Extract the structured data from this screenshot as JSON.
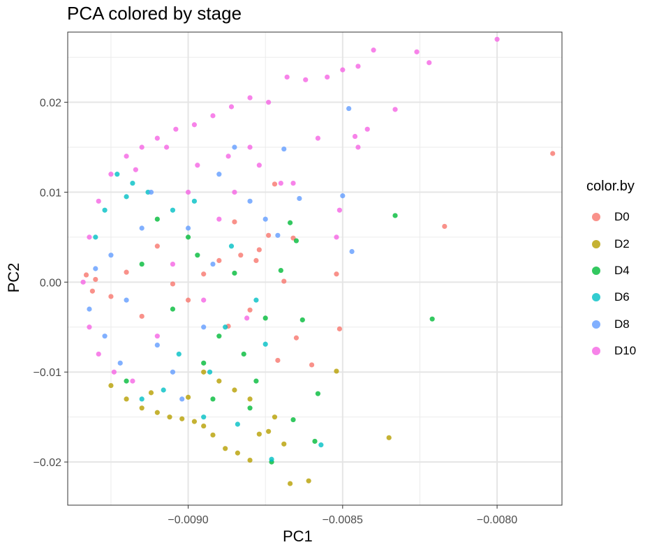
{
  "chart_data": {
    "type": "scatter",
    "title": "PCA colored by stage",
    "xlabel": "PC1",
    "ylabel": "PC2",
    "xlim": [
      -0.00939,
      -0.00779
    ],
    "ylim": [
      -0.0248,
      0.0278
    ],
    "x_ticks": [
      -0.009,
      -0.0085,
      -0.008
    ],
    "x_tick_labels": [
      "−0.0090",
      "−0.0085",
      "−0.0080"
    ],
    "y_ticks": [
      -0.02,
      -0.01,
      0.0,
      0.01,
      0.02
    ],
    "y_tick_labels": [
      "−0.02",
      "−0.01",
      "0.00",
      "0.01",
      "0.02"
    ],
    "grid": true,
    "legend": {
      "title": "color.by",
      "placement": "right",
      "entries": [
        {
          "label": "D0",
          "color": "#F8766D"
        },
        {
          "label": "D2",
          "color": "#B79F00"
        },
        {
          "label": "D4",
          "color": "#00BA38"
        },
        {
          "label": "D6",
          "color": "#00BFC4"
        },
        {
          "label": "D8",
          "color": "#619CFF"
        },
        {
          "label": "D10",
          "color": "#F564E3"
        }
      ]
    },
    "series": [
      {
        "name": "D0",
        "color": "#F8766D",
        "points": [
          [
            -0.00782,
            0.0143
          ],
          [
            -0.00817,
            0.0062
          ],
          [
            -0.00851,
            -0.0052
          ],
          [
            -0.00852,
            0.0009
          ],
          [
            -0.0086,
            -0.0092
          ],
          [
            -0.00866,
            0.0049
          ],
          [
            -0.00869,
            0.0001
          ],
          [
            -0.00865,
            -0.0062
          ],
          [
            -0.00872,
            0.0109
          ],
          [
            -0.00877,
            0.0036
          ],
          [
            -0.00883,
            0.003
          ],
          [
            -0.00874,
            0.0052
          ],
          [
            -0.0088,
            -0.0031
          ],
          [
            -0.00885,
            0.0067
          ],
          [
            -0.00871,
            -0.0087
          ],
          [
            -0.0089,
            0.0024
          ],
          [
            -0.00895,
            0.0009
          ],
          [
            -0.009,
            -0.002
          ],
          [
            -0.00905,
            -0.0002
          ],
          [
            -0.0091,
            0.004
          ],
          [
            -0.00915,
            -0.0038
          ],
          [
            -0.0092,
            0.0011
          ],
          [
            -0.00925,
            -0.0016
          ],
          [
            -0.0093,
            0.0003
          ],
          [
            -0.00933,
            0.0008
          ],
          [
            -0.00931,
            -0.001
          ],
          [
            -0.00887,
            -0.0049
          ],
          [
            -0.00878,
            0.0024
          ]
        ]
      },
      {
        "name": "D2",
        "color": "#B79F00",
        "points": [
          [
            -0.00835,
            -0.0173
          ],
          [
            -0.00852,
            -0.0099
          ],
          [
            -0.00861,
            -0.0221
          ],
          [
            -0.00867,
            -0.0224
          ],
          [
            -0.00874,
            -0.0166
          ],
          [
            -0.00877,
            -0.0169
          ],
          [
            -0.0088,
            -0.0198
          ],
          [
            -0.00884,
            -0.019
          ],
          [
            -0.00888,
            -0.0185
          ],
          [
            -0.00892,
            -0.017
          ],
          [
            -0.00895,
            -0.016
          ],
          [
            -0.00898,
            -0.0155
          ],
          [
            -0.00902,
            -0.0152
          ],
          [
            -0.00906,
            -0.015
          ],
          [
            -0.0091,
            -0.0145
          ],
          [
            -0.00915,
            -0.014
          ],
          [
            -0.0092,
            -0.013
          ],
          [
            -0.00925,
            -0.0115
          ],
          [
            -0.00885,
            -0.012
          ],
          [
            -0.0088,
            -0.013
          ],
          [
            -0.0089,
            -0.011
          ],
          [
            -0.00895,
            -0.01
          ],
          [
            -0.00872,
            -0.015
          ],
          [
            -0.00869,
            -0.018
          ],
          [
            -0.009,
            -0.0128
          ],
          [
            -0.00912,
            -0.0123
          ]
        ]
      },
      {
        "name": "D4",
        "color": "#00BA38",
        "points": [
          [
            -0.00821,
            -0.0041
          ],
          [
            -0.00833,
            0.0074
          ],
          [
            -0.00858,
            -0.0124
          ],
          [
            -0.00859,
            -0.0177
          ],
          [
            -0.00863,
            -0.0042
          ],
          [
            -0.00866,
            -0.0153
          ],
          [
            -0.00865,
            0.0046
          ],
          [
            -0.00867,
            0.0066
          ],
          [
            -0.0087,
            0.0013
          ],
          [
            -0.00873,
            -0.02
          ],
          [
            -0.00875,
            -0.004
          ],
          [
            -0.0088,
            -0.014
          ],
          [
            -0.00885,
            0.001
          ],
          [
            -0.0089,
            -0.006
          ],
          [
            -0.00895,
            -0.009
          ],
          [
            -0.009,
            0.005
          ],
          [
            -0.00905,
            -0.003
          ],
          [
            -0.0091,
            0.007
          ],
          [
            -0.00915,
            0.002
          ],
          [
            -0.0092,
            -0.011
          ],
          [
            -0.00882,
            -0.008
          ],
          [
            -0.00878,
            -0.011
          ],
          [
            -0.00892,
            -0.013
          ],
          [
            -0.00897,
            0.003
          ]
        ]
      },
      {
        "name": "D6",
        "color": "#00BFC4",
        "points": [
          [
            -0.00857,
            -0.0181
          ],
          [
            -0.00873,
            -0.0197
          ],
          [
            -0.00875,
            -0.0069
          ],
          [
            -0.00878,
            -0.002
          ],
          [
            -0.00884,
            -0.0158
          ],
          [
            -0.00888,
            -0.005
          ],
          [
            -0.00893,
            -0.01
          ],
          [
            -0.00898,
            0.009
          ],
          [
            -0.00903,
            -0.008
          ],
          [
            -0.00908,
            -0.012
          ],
          [
            -0.00913,
            0.01
          ],
          [
            -0.00918,
            0.011
          ],
          [
            -0.00923,
            0.012
          ],
          [
            -0.00927,
            0.008
          ],
          [
            -0.0093,
            0.005
          ],
          [
            -0.00886,
            0.004
          ],
          [
            -0.00895,
            -0.015
          ],
          [
            -0.00905,
            0.008
          ],
          [
            -0.00915,
            -0.013
          ],
          [
            -0.0092,
            0.0095
          ]
        ]
      },
      {
        "name": "D8",
        "color": "#619CFF",
        "points": [
          [
            -0.00848,
            0.0193
          ],
          [
            -0.0085,
            0.0096
          ],
          [
            -0.00847,
            0.0034
          ],
          [
            -0.00864,
            0.0093
          ],
          [
            -0.00869,
            0.0148
          ],
          [
            -0.00871,
            0.0052
          ],
          [
            -0.0088,
            0.009
          ],
          [
            -0.00885,
            0.015
          ],
          [
            -0.0089,
            0.012
          ],
          [
            -0.00895,
            -0.005
          ],
          [
            -0.009,
            0.006
          ],
          [
            -0.00905,
            -0.01
          ],
          [
            -0.0091,
            -0.007
          ],
          [
            -0.00915,
            0.006
          ],
          [
            -0.0092,
            -0.002
          ],
          [
            -0.00925,
            0.003
          ],
          [
            -0.0093,
            0.0015
          ],
          [
            -0.00932,
            -0.003
          ],
          [
            -0.00927,
            -0.006
          ],
          [
            -0.00922,
            -0.009
          ],
          [
            -0.00875,
            0.007
          ],
          [
            -0.00892,
            0.002
          ],
          [
            -0.00902,
            -0.013
          ],
          [
            -0.00912,
            0.01
          ]
        ]
      },
      {
        "name": "D10",
        "color": "#F564E3",
        "points": [
          [
            -0.008,
            0.027
          ],
          [
            -0.00826,
            0.0256
          ],
          [
            -0.00822,
            0.0244
          ],
          [
            -0.00833,
            0.0192
          ],
          [
            -0.0084,
            0.0258
          ],
          [
            -0.00845,
            0.024
          ],
          [
            -0.0085,
            0.0236
          ],
          [
            -0.00842,
            0.017
          ],
          [
            -0.00846,
            0.0162
          ],
          [
            -0.00855,
            0.0228
          ],
          [
            -0.00862,
            0.0225
          ],
          [
            -0.00868,
            0.0228
          ],
          [
            -0.00874,
            0.02
          ],
          [
            -0.0088,
            0.0205
          ],
          [
            -0.00886,
            0.0195
          ],
          [
            -0.00892,
            0.0185
          ],
          [
            -0.00898,
            0.0175
          ],
          [
            -0.00904,
            0.017
          ],
          [
            -0.0091,
            0.016
          ],
          [
            -0.00915,
            0.015
          ],
          [
            -0.0092,
            0.014
          ],
          [
            -0.00925,
            0.012
          ],
          [
            -0.00929,
            0.009
          ],
          [
            -0.00932,
            0.005
          ],
          [
            -0.00934,
            0.0
          ],
          [
            -0.00932,
            -0.005
          ],
          [
            -0.00929,
            -0.008
          ],
          [
            -0.00924,
            -0.01
          ],
          [
            -0.00918,
            -0.011
          ],
          [
            -0.0091,
            -0.006
          ],
          [
            -0.00905,
            0.002
          ],
          [
            -0.009,
            0.01
          ],
          [
            -0.00895,
            -0.002
          ],
          [
            -0.0089,
            0.007
          ],
          [
            -0.00885,
            0.01
          ],
          [
            -0.0088,
            0.015
          ],
          [
            -0.0087,
            0.011
          ],
          [
            -0.00866,
            0.011
          ],
          [
            -0.00858,
            0.016
          ],
          [
            -0.00851,
            0.008
          ],
          [
            -0.00845,
            0.015
          ],
          [
            -0.00852,
            0.005
          ],
          [
            -0.00881,
            -0.004
          ],
          [
            -0.00877,
            0.013
          ],
          [
            -0.00887,
            0.014
          ],
          [
            -0.00897,
            0.013
          ],
          [
            -0.00907,
            0.015
          ],
          [
            -0.00917,
            0.0125
          ]
        ]
      }
    ]
  }
}
